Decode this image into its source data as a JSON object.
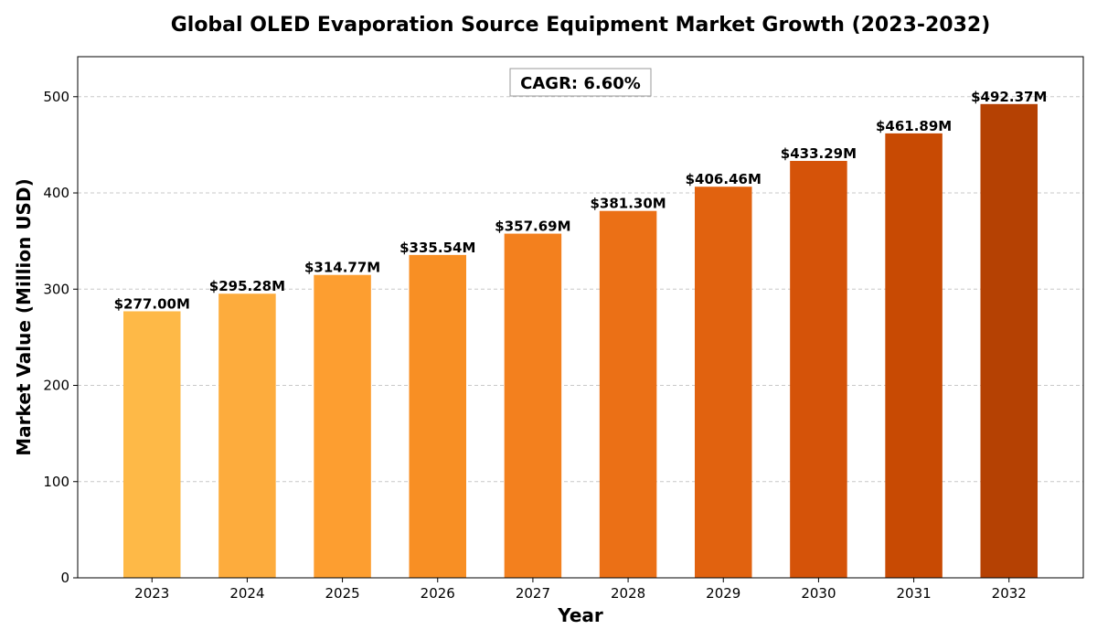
{
  "chart_data": {
    "type": "bar",
    "title": "Global OLED Evaporation Source Equipment Market Growth (2023-2032)",
    "xlabel": "Year",
    "ylabel": "Market Value (Million USD)",
    "categories": [
      "2023",
      "2024",
      "2025",
      "2026",
      "2027",
      "2028",
      "2029",
      "2030",
      "2031",
      "2032"
    ],
    "values": [
      277.0,
      295.28,
      314.77,
      335.54,
      357.69,
      381.3,
      406.46,
      433.29,
      461.89,
      492.37
    ],
    "data_labels": [
      "$277.00M",
      "$295.28M",
      "$314.77M",
      "$335.54M",
      "$357.69M",
      "$381.30M",
      "$406.46M",
      "$433.29M",
      "$461.89M",
      "$492.37M"
    ],
    "colors": [
      "#FEB947",
      "#FDAC3D",
      "#FD9E30",
      "#F88F24",
      "#F3801E",
      "#EB7016",
      "#E1620F",
      "#D55309",
      "#C84A03",
      "#B54103"
    ],
    "ylim": [
      0,
      541.6
    ],
    "yticks": [
      0,
      100,
      200,
      300,
      400,
      500
    ],
    "grid": "y-dashed",
    "annotation": "CAGR: 6.60%"
  }
}
